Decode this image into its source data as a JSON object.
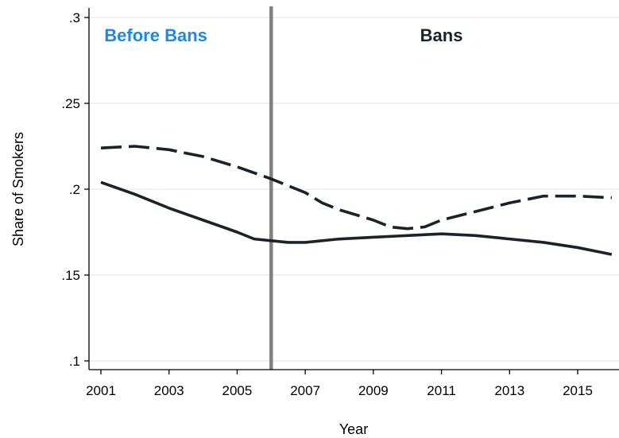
{
  "chart_data": {
    "type": "line",
    "xlabel": "Year",
    "ylabel": "Share of Smokers",
    "xlim": [
      2000.8,
      2016.2
    ],
    "ylim": [
      0.1,
      0.3
    ],
    "xticks": [
      2001,
      2003,
      2005,
      2007,
      2009,
      2011,
      2013,
      2015
    ],
    "xtick_labels": [
      "2001",
      "2003",
      "2005",
      "2007",
      "2009",
      "2011",
      "2013",
      "2015"
    ],
    "yticks": [
      0.1,
      0.15,
      0.2,
      0.25,
      0.3
    ],
    "ytick_labels": [
      ".1",
      ".15",
      ".2",
      ".25",
      ".3"
    ],
    "grid": "horizontal",
    "series": [
      {
        "style": "solid",
        "color": "#1a2327",
        "x": [
          2001,
          2002,
          2003,
          2004,
          2005,
          2005.5,
          2006,
          2006.5,
          2007,
          2008,
          2009,
          2010,
          2011,
          2012,
          2013,
          2014,
          2015,
          2016
        ],
        "y": [
          0.204,
          0.197,
          0.189,
          0.182,
          0.175,
          0.171,
          0.17,
          0.169,
          0.169,
          0.171,
          0.172,
          0.173,
          0.174,
          0.173,
          0.171,
          0.169,
          0.166,
          0.162
        ]
      },
      {
        "style": "dashed",
        "color": "#1a2327",
        "x": [
          2001,
          2002,
          2003,
          2004,
          2005,
          2006,
          2007,
          2007.5,
          2008,
          2009,
          2009.5,
          2010,
          2010.5,
          2011,
          2012,
          2013,
          2014,
          2015,
          2016
        ],
        "y": [
          0.224,
          0.225,
          0.223,
          0.219,
          0.213,
          0.206,
          0.198,
          0.192,
          0.188,
          0.182,
          0.178,
          0.177,
          0.178,
          0.182,
          0.187,
          0.192,
          0.196,
          0.196,
          0.195
        ]
      }
    ],
    "vline": {
      "x": 2006,
      "color": "#808080"
    },
    "annotations": [
      {
        "text": "Before Bans",
        "x": 2001.1,
        "y": 0.29,
        "color": "#1e88e5",
        "anchor": "start"
      },
      {
        "text": "Bans",
        "x": 2011,
        "y": 0.29,
        "color": "#1a2327",
        "anchor": "middle"
      }
    ]
  }
}
